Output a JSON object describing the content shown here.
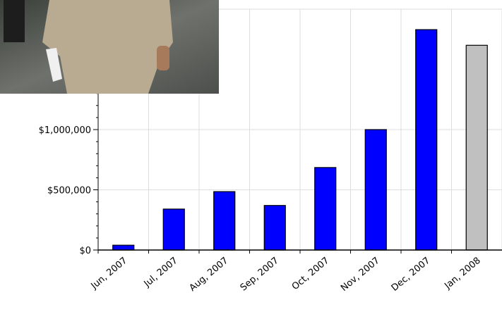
{
  "chart_data": {
    "type": "bar",
    "categories": [
      "Jun, 2007",
      "Jul, 2007",
      "Aug, 2007",
      "Sep, 2007",
      "Oct, 2007",
      "Nov, 2007",
      "Dec, 2007",
      "Jan, 2008"
    ],
    "values": [
      40000,
      340000,
      485000,
      370000,
      685000,
      1000000,
      1830000,
      1700000
    ],
    "colors": [
      "#0000ff",
      "#0000ff",
      "#0000ff",
      "#0000ff",
      "#0000ff",
      "#0000ff",
      "#0000ff",
      "#c0c0c0"
    ],
    "ylim": [
      0,
      2000000
    ],
    "yticks": [
      {
        "value": 0,
        "label": "$0"
      },
      {
        "value": 500000,
        "label": "$500,000"
      },
      {
        "value": 1000000,
        "label": "$1,000,000"
      }
    ],
    "grid": true
  }
}
